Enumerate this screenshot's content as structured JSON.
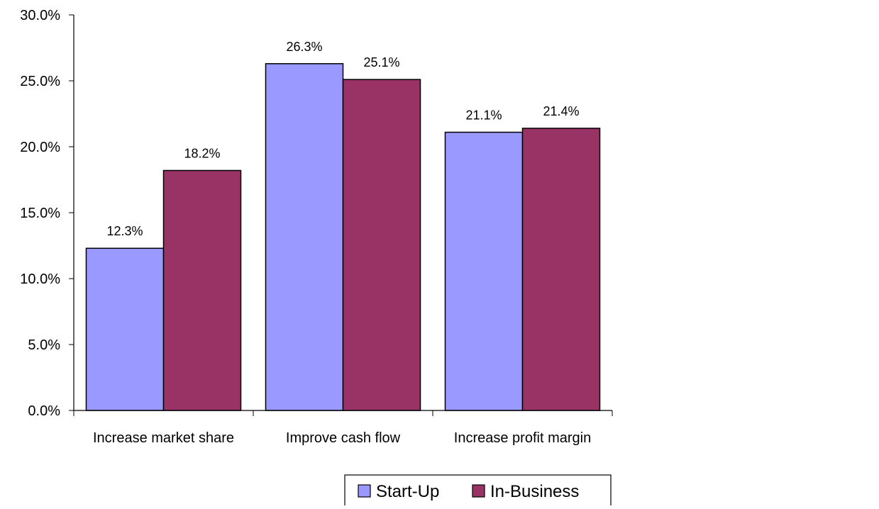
{
  "chart_data": {
    "type": "bar",
    "categories": [
      "Increase market share",
      "Improve cash flow",
      "Increase profit margin"
    ],
    "series": [
      {
        "name": "Start-Up",
        "values": [
          12.3,
          26.3,
          21.1
        ],
        "value_labels": [
          "12.3%",
          "26.3%",
          "21.1%"
        ],
        "color": "#9999FF"
      },
      {
        "name": "In-Business",
        "values": [
          18.2,
          25.1,
          21.4
        ],
        "value_labels": [
          "18.2%",
          "25.1%",
          "21.4%"
        ],
        "color": "#993366"
      }
    ],
    "ylim": [
      0,
      30
    ],
    "yticks": [
      {
        "value": 0,
        "label": "0.0%"
      },
      {
        "value": 5,
        "label": "5.0%"
      },
      {
        "value": 10,
        "label": "10.0%"
      },
      {
        "value": 15,
        "label": "15.0%"
      },
      {
        "value": 20,
        "label": "20.0%"
      },
      {
        "value": 25,
        "label": "25.0%"
      },
      {
        "value": 30,
        "label": "30.0%"
      }
    ],
    "title": "",
    "xlabel": "",
    "ylabel": "",
    "grid": false,
    "legend_position": "bottom"
  }
}
